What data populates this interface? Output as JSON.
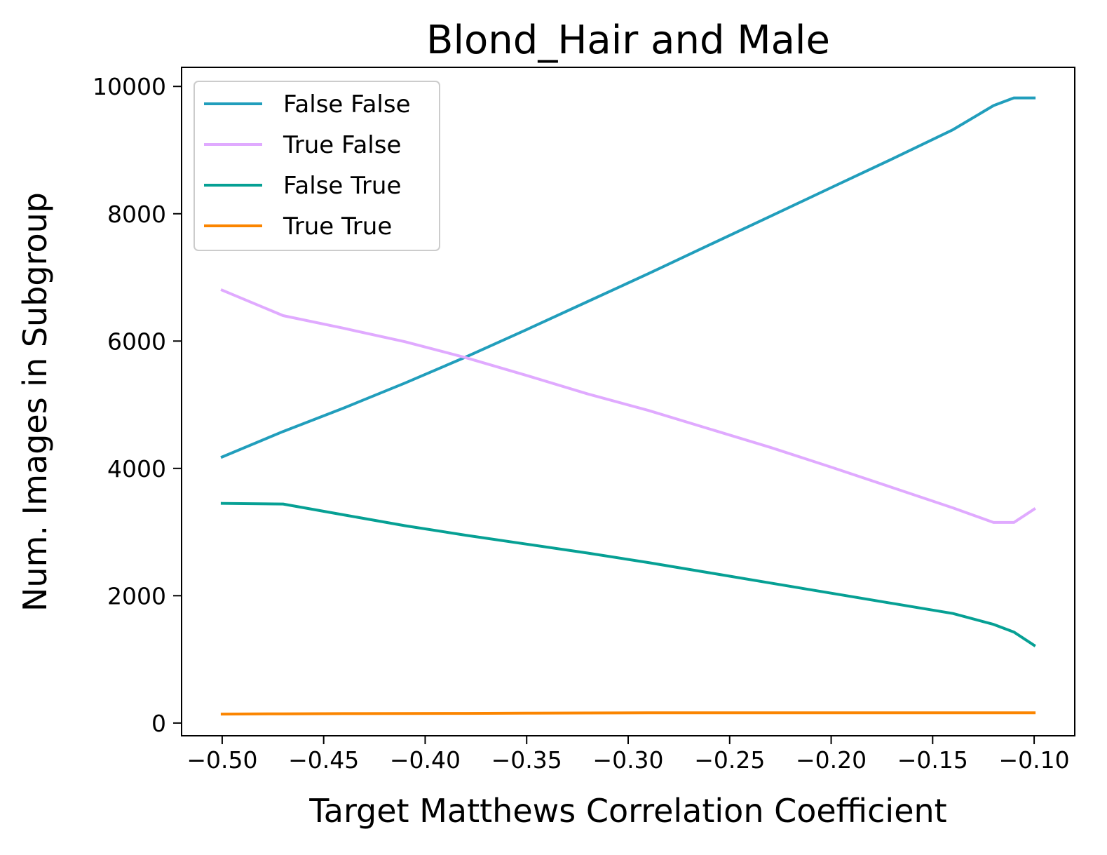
{
  "chart_data": {
    "type": "line",
    "title": "Blond_Hair and Male",
    "xlabel": "Target Matthews Correlation Coefficient",
    "ylabel": "Num. Images in Subgroup",
    "xlim": [
      -0.52,
      -0.08
    ],
    "ylim": [
      -200,
      10300
    ],
    "x_ticks": [
      -0.5,
      -0.45,
      -0.4,
      -0.35,
      -0.3,
      -0.25,
      -0.2,
      -0.15,
      -0.1
    ],
    "x_tick_labels": [
      "−0.50",
      "−0.45",
      "−0.40",
      "−0.35",
      "−0.30",
      "−0.25",
      "−0.20",
      "−0.15",
      "−0.10"
    ],
    "y_ticks": [
      0,
      2000,
      4000,
      6000,
      8000,
      10000
    ],
    "y_tick_labels": [
      "0",
      "2000",
      "4000",
      "6000",
      "8000",
      "10000"
    ],
    "grid": false,
    "legend_position": "top-left",
    "x": [
      -0.5,
      -0.47,
      -0.44,
      -0.41,
      -0.38,
      -0.35,
      -0.32,
      -0.29,
      -0.26,
      -0.23,
      -0.2,
      -0.17,
      -0.14,
      -0.12,
      -0.11,
      -0.1
    ],
    "series": [
      {
        "name": "False False",
        "color": "#219ebc",
        "values": [
          4180,
          4580,
          4950,
          5340,
          5750,
          6180,
          6620,
          7060,
          7510,
          7960,
          8410,
          8860,
          9320,
          9700,
          9820,
          9820
        ]
      },
      {
        "name": "True False",
        "color": "#e0aaff",
        "values": [
          6800,
          6400,
          6200,
          5990,
          5740,
          5460,
          5170,
          4910,
          4620,
          4330,
          4020,
          3700,
          3380,
          3150,
          3150,
          3360
        ]
      },
      {
        "name": "False True",
        "color": "#06a094",
        "values": [
          3450,
          3440,
          3270,
          3100,
          2950,
          2810,
          2670,
          2520,
          2360,
          2200,
          2040,
          1880,
          1720,
          1550,
          1430,
          1220
        ]
      },
      {
        "name": "True True",
        "color": "#fb8500",
        "values": [
          140,
          145,
          148,
          150,
          152,
          155,
          158,
          160,
          160,
          160,
          160,
          160,
          160,
          160,
          160,
          160
        ]
      }
    ]
  }
}
